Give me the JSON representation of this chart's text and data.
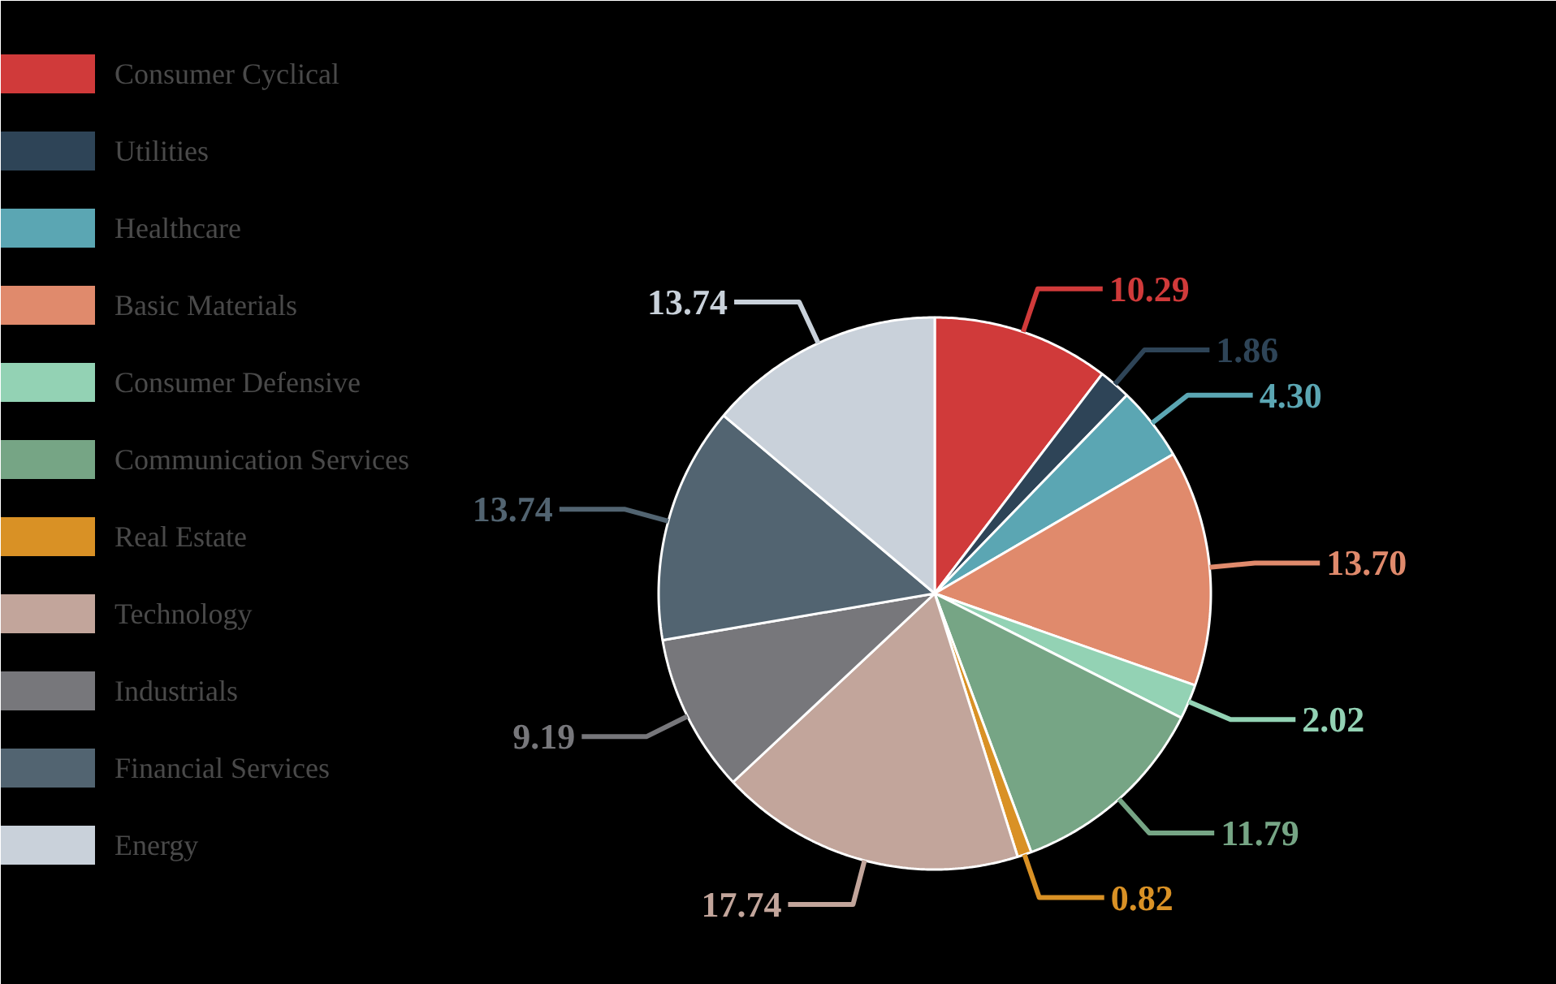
{
  "chart_data": {
    "type": "pie",
    "categories": [
      "Consumer Cyclical",
      "Utilities",
      "Healthcare",
      "Basic Materials",
      "Consumer Defensive",
      "Communication Services",
      "Real Estate",
      "Technology",
      "Industrials",
      "Financial Services",
      "Energy"
    ],
    "values": [
      10.29,
      1.86,
      4.3,
      13.7,
      2.02,
      11.79,
      0.82,
      17.74,
      9.19,
      13.74,
      13.74
    ],
    "colors": [
      "#d03a3a",
      "#2e4457",
      "#5ba6b3",
      "#e08a6c",
      "#93d2b4",
      "#76a585",
      "#d99125",
      "#c2a59b",
      "#77777b",
      "#526471",
      "#c9d1da"
    ],
    "value_labels": [
      "10.29",
      "1.86",
      "4.30",
      "13.70",
      "2.02",
      "11.79",
      "0.82",
      "17.74",
      "9.19",
      "13.74",
      "13.74"
    ],
    "legend": "left"
  }
}
